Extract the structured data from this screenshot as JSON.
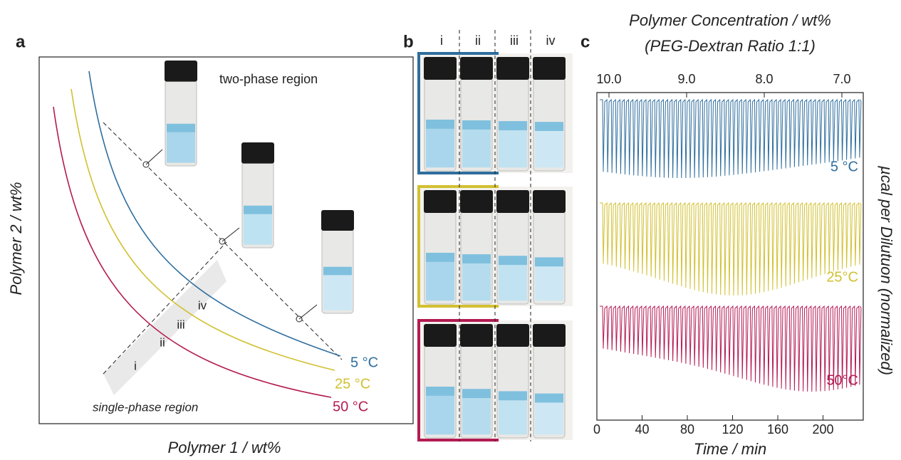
{
  "panel_a": {
    "label": "a",
    "x_axis_label": "Polymer 1 / wt%",
    "y_axis_label": "Polymer 2 / wt%",
    "region_top": "two-phase region",
    "region_bottom": "single-phase region",
    "curves": [
      {
        "name": "5 °C",
        "color": "#2f6e9e"
      },
      {
        "name": "25 °C",
        "color": "#d2c031"
      },
      {
        "name": "50 °C",
        "color": "#b41b52"
      }
    ],
    "points": [
      "i",
      "ii",
      "iii",
      "iv"
    ]
  },
  "panel_b": {
    "label": "b",
    "columns": [
      "i",
      "ii",
      "iii",
      "iv"
    ]
  },
  "panel_c": {
    "label": "c",
    "top_axis_label": [
      "Polymer Concentration / wt%",
      "(PEG-Dextran Ratio 1:1)"
    ],
    "top_ticks": [
      "10.0",
      "9.0",
      "8.0",
      "7.0"
    ],
    "bottom_ticks": [
      "0",
      "40",
      "80",
      "120",
      "160",
      "200"
    ],
    "x_axis_label": "Time / min",
    "y_axis_label": "µcal per Dilutuon (normalized)",
    "traces": [
      {
        "name": "5 °C",
        "color": "#2f6e9e"
      },
      {
        "name": "25°C",
        "color": "#d2c031"
      },
      {
        "name": "50°C",
        "color": "#b41b52"
      }
    ]
  }
}
